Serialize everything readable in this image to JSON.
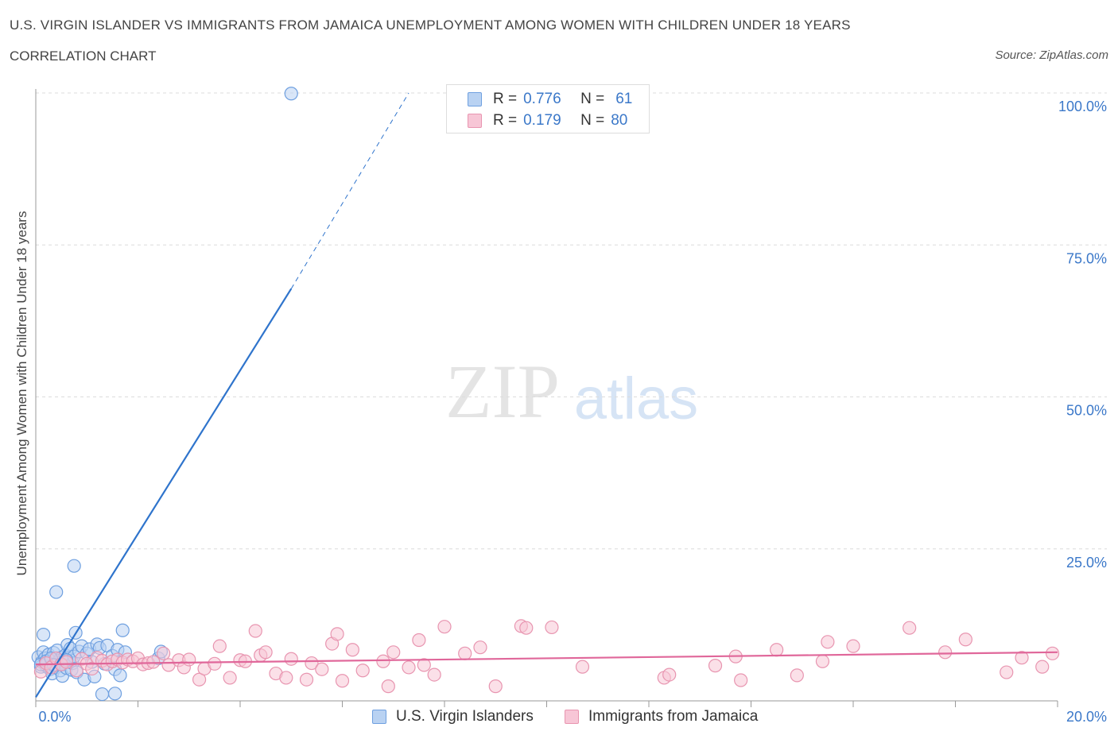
{
  "header": {
    "title": "U.S. VIRGIN ISLANDER VS IMMIGRANTS FROM JAMAICA UNEMPLOYMENT AMONG WOMEN WITH CHILDREN UNDER 18 YEARS",
    "subtitle": "CORRELATION CHART",
    "source": "Source: ZipAtlas.com"
  },
  "watermark": {
    "zip": "ZIP",
    "atlas": "atlas"
  },
  "legend": {
    "r_label": "R =",
    "n_label": "N =",
    "series": [
      {
        "r": "0.776",
        "n": "61"
      },
      {
        "r": "0.179",
        "n": "80"
      }
    ]
  },
  "chart_data": {
    "type": "scatter",
    "title": "U.S. VIRGIN ISLANDER VS IMMIGRANTS FROM JAMAICA UNEMPLOYMENT AMONG WOMEN WITH CHILDREN UNDER 18 YEARS",
    "xlabel": "",
    "ylabel": "Unemployment Among Women with Children Under 18 years",
    "xlim": [
      0,
      20
    ],
    "ylim": [
      0,
      100
    ],
    "x_ticks": [
      "0.0%",
      "20.0%"
    ],
    "y_ticks": [
      {
        "value": 25,
        "label": "25.0%"
      },
      {
        "value": 50,
        "label": "50.0%"
      },
      {
        "value": 75,
        "label": "75.0%"
      },
      {
        "value": 100,
        "label": "100.0%"
      }
    ],
    "grid": true,
    "legend_position": "top-center",
    "series": [
      {
        "name": "U.S. Virgin Islanders",
        "color": "#6fa0e0",
        "fill": "#b9d2f2",
        "line_color": "#2f74cc",
        "trend": {
          "x0": 0,
          "y0": 0.6,
          "x1": 5.0,
          "y1": 67.8,
          "dash_to_x": 7.3,
          "dash_to_y": 100
        },
        "points": [
          [
            0.05,
            7.2
          ],
          [
            0.1,
            5.6
          ],
          [
            0.12,
            6.4
          ],
          [
            0.15,
            8.0
          ],
          [
            0.18,
            7.0
          ],
          [
            0.2,
            5.8
          ],
          [
            0.22,
            6.1
          ],
          [
            0.25,
            7.6
          ],
          [
            0.28,
            5.2
          ],
          [
            0.3,
            6.8
          ],
          [
            0.32,
            4.5
          ],
          [
            0.35,
            7.9
          ],
          [
            0.38,
            6.0
          ],
          [
            0.4,
            5.5
          ],
          [
            0.42,
            8.3
          ],
          [
            0.45,
            6.6
          ],
          [
            0.48,
            5.0
          ],
          [
            0.5,
            7.1
          ],
          [
            0.52,
            4.1
          ],
          [
            0.55,
            6.3
          ],
          [
            0.58,
            7.5
          ],
          [
            0.6,
            5.4
          ],
          [
            0.62,
            9.2
          ],
          [
            0.65,
            6.9
          ],
          [
            0.68,
            8.6
          ],
          [
            0.7,
            5.1
          ],
          [
            0.72,
            6.2
          ],
          [
            0.75,
            7.3
          ],
          [
            0.78,
            11.2
          ],
          [
            0.8,
            4.7
          ],
          [
            0.85,
            8.1
          ],
          [
            0.9,
            9.0
          ],
          [
            0.95,
            3.5
          ],
          [
            1.0,
            7.8
          ],
          [
            1.05,
            8.5
          ],
          [
            1.1,
            6.4
          ],
          [
            1.15,
            4.0
          ],
          [
            1.2,
            9.3
          ],
          [
            1.25,
            8.7
          ],
          [
            1.35,
            6.1
          ],
          [
            1.4,
            9.1
          ],
          [
            1.5,
            7.4
          ],
          [
            1.55,
            5.2
          ],
          [
            1.6,
            8.4
          ],
          [
            1.65,
            4.2
          ],
          [
            1.7,
            11.6
          ],
          [
            1.75,
            8.0
          ],
          [
            0.15,
            10.9
          ],
          [
            0.4,
            17.9
          ],
          [
            0.75,
            22.2
          ],
          [
            1.3,
            1.1
          ],
          [
            1.55,
            1.2
          ],
          [
            5.0,
            99.9
          ],
          [
            2.4,
            7.0
          ],
          [
            2.45,
            8.1
          ],
          [
            0.1,
            6.0
          ],
          [
            0.2,
            6.5
          ],
          [
            0.3,
            7.0
          ],
          [
            0.35,
            5.9
          ],
          [
            0.5,
            6.0
          ],
          [
            0.6,
            6.7
          ]
        ]
      },
      {
        "name": "Immigrants from Jamaica",
        "color": "#e895b0",
        "fill": "#f7c6d6",
        "line_color": "#e0679a",
        "trend": {
          "x0": 0,
          "y0": 6.0,
          "x1": 20,
          "y1": 8.0
        },
        "points": [
          [
            0.1,
            4.8
          ],
          [
            0.2,
            6.2
          ],
          [
            0.3,
            5.5
          ],
          [
            0.4,
            7.0
          ],
          [
            0.5,
            6.0
          ],
          [
            0.6,
            6.4
          ],
          [
            0.8,
            5.0
          ],
          [
            0.9,
            6.9
          ],
          [
            1.0,
            6.1
          ],
          [
            1.1,
            5.3
          ],
          [
            1.2,
            7.1
          ],
          [
            1.3,
            6.6
          ],
          [
            1.4,
            6.0
          ],
          [
            1.5,
            6.5
          ],
          [
            1.6,
            6.8
          ],
          [
            1.7,
            6.3
          ],
          [
            1.8,
            6.8
          ],
          [
            1.9,
            6.5
          ],
          [
            2.0,
            7.0
          ],
          [
            2.1,
            6.0
          ],
          [
            2.2,
            6.2
          ],
          [
            2.3,
            6.4
          ],
          [
            2.5,
            7.8
          ],
          [
            2.6,
            5.9
          ],
          [
            2.8,
            6.7
          ],
          [
            2.9,
            5.5
          ],
          [
            3.0,
            6.8
          ],
          [
            3.2,
            3.5
          ],
          [
            3.3,
            5.3
          ],
          [
            3.5,
            6.1
          ],
          [
            3.6,
            9.0
          ],
          [
            3.8,
            3.8
          ],
          [
            4.0,
            6.7
          ],
          [
            4.1,
            6.5
          ],
          [
            4.3,
            11.5
          ],
          [
            4.4,
            7.5
          ],
          [
            4.5,
            8.0
          ],
          [
            4.7,
            4.5
          ],
          [
            4.9,
            3.8
          ],
          [
            5.0,
            6.9
          ],
          [
            5.3,
            3.5
          ],
          [
            5.4,
            6.2
          ],
          [
            5.6,
            5.2
          ],
          [
            5.8,
            9.4
          ],
          [
            5.9,
            11.0
          ],
          [
            6.0,
            3.3
          ],
          [
            6.2,
            8.4
          ],
          [
            6.4,
            5.0
          ],
          [
            6.8,
            6.5
          ],
          [
            6.9,
            2.4
          ],
          [
            7.0,
            8.0
          ],
          [
            7.3,
            5.5
          ],
          [
            7.5,
            10.0
          ],
          [
            7.6,
            5.9
          ],
          [
            7.8,
            4.3
          ],
          [
            8.0,
            12.2
          ],
          [
            8.4,
            7.8
          ],
          [
            8.7,
            8.8
          ],
          [
            9.0,
            2.4
          ],
          [
            9.5,
            12.3
          ],
          [
            9.6,
            12.0
          ],
          [
            10.1,
            12.1
          ],
          [
            10.7,
            5.6
          ],
          [
            12.3,
            3.8
          ],
          [
            12.4,
            4.3
          ],
          [
            13.3,
            5.8
          ],
          [
            13.7,
            7.3
          ],
          [
            13.8,
            3.4
          ],
          [
            14.5,
            8.4
          ],
          [
            14.9,
            4.2
          ],
          [
            15.4,
            6.5
          ],
          [
            15.5,
            9.7
          ],
          [
            16.0,
            9.0
          ],
          [
            17.1,
            12.0
          ],
          [
            17.8,
            8.0
          ],
          [
            18.2,
            10.1
          ],
          [
            19.0,
            4.7
          ],
          [
            19.3,
            7.1
          ],
          [
            19.7,
            5.6
          ],
          [
            19.9,
            7.8
          ]
        ]
      }
    ]
  }
}
